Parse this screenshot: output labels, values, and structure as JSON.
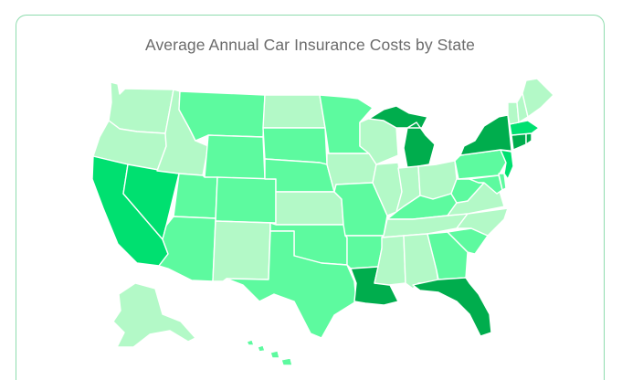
{
  "title": "Average Annual Car Insurance Costs by State",
  "colors": {
    "c1": "#b3f9c7",
    "c2": "#5dfa9f",
    "c3": "#00e070",
    "c4": "#00ad4d",
    "border": "#8fdcae"
  },
  "states": [
    {
      "id": "WA",
      "level": 1
    },
    {
      "id": "OR",
      "level": 1
    },
    {
      "id": "CA",
      "level": 3
    },
    {
      "id": "NV",
      "level": 3
    },
    {
      "id": "ID",
      "level": 1
    },
    {
      "id": "MT",
      "level": 2
    },
    {
      "id": "WY",
      "level": 2
    },
    {
      "id": "UT",
      "level": 2
    },
    {
      "id": "CO",
      "level": 2
    },
    {
      "id": "AZ",
      "level": 2
    },
    {
      "id": "NM",
      "level": 1
    },
    {
      "id": "ND",
      "level": 1
    },
    {
      "id": "SD",
      "level": 2
    },
    {
      "id": "NE",
      "level": 2
    },
    {
      "id": "KS",
      "level": 1
    },
    {
      "id": "OK",
      "level": 2
    },
    {
      "id": "TX",
      "level": 2
    },
    {
      "id": "MN",
      "level": 2
    },
    {
      "id": "IA",
      "level": 1
    },
    {
      "id": "MO",
      "level": 2
    },
    {
      "id": "AR",
      "level": 2
    },
    {
      "id": "LA",
      "level": 4
    },
    {
      "id": "WI",
      "level": 1
    },
    {
      "id": "IL",
      "level": 1
    },
    {
      "id": "MI",
      "level": 4
    },
    {
      "id": "IN",
      "level": 1
    },
    {
      "id": "OH",
      "level": 1
    },
    {
      "id": "KY",
      "level": 2
    },
    {
      "id": "TN",
      "level": 1
    },
    {
      "id": "MS",
      "level": 1
    },
    {
      "id": "AL",
      "level": 1
    },
    {
      "id": "GA",
      "level": 2
    },
    {
      "id": "FL",
      "level": 4
    },
    {
      "id": "SC",
      "level": 2
    },
    {
      "id": "NC",
      "level": 1
    },
    {
      "id": "VA",
      "level": 1
    },
    {
      "id": "WV",
      "level": 2
    },
    {
      "id": "PA",
      "level": 2
    },
    {
      "id": "NY",
      "level": 4
    },
    {
      "id": "NJ",
      "level": 3
    },
    {
      "id": "DE",
      "level": 2
    },
    {
      "id": "MD",
      "level": 2
    },
    {
      "id": "CT",
      "level": 4
    },
    {
      "id": "RI",
      "level": 4
    },
    {
      "id": "MA",
      "level": 3
    },
    {
      "id": "VT",
      "level": 1
    },
    {
      "id": "NH",
      "level": 1
    },
    {
      "id": "ME",
      "level": 1
    },
    {
      "id": "AK",
      "level": 1
    },
    {
      "id": "HI",
      "level": 2
    }
  ]
}
